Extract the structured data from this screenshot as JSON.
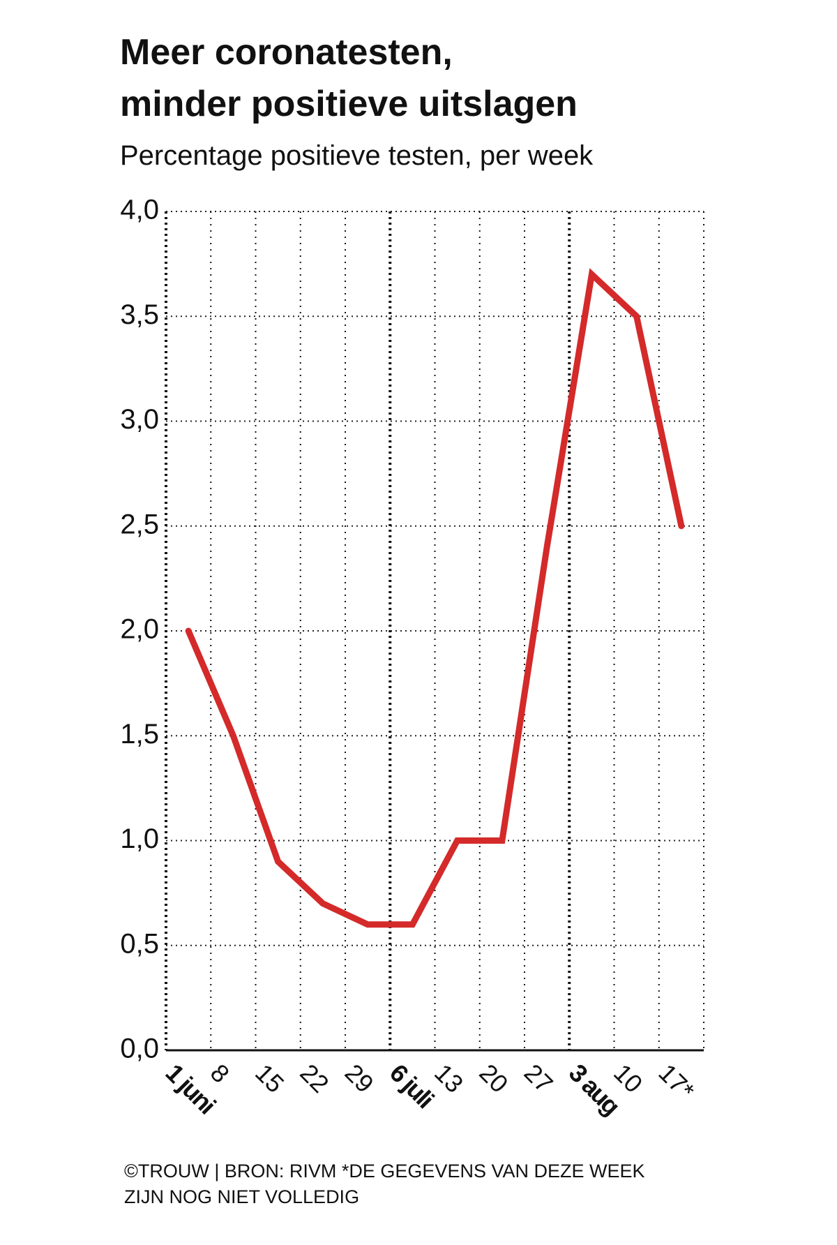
{
  "chart_data": {
    "type": "line",
    "title": [
      "Meer coronatesten,",
      "minder positieve uitslagen"
    ],
    "subtitle": "Percentage positieve testen, per week",
    "footer": [
      "©TROUW | BRON: RIVM *DE GEGEVENS VAN DEZE WEEK",
      "ZIJN NOG NIET VOLLEDIG"
    ],
    "categories": [
      "1 juni",
      "8",
      "15",
      "22",
      "29",
      "6 juli",
      "13",
      "20",
      "27",
      "3 aug",
      "10",
      "17*"
    ],
    "series": [
      {
        "name": "Percentage positieve testen",
        "color": "#d42a2a",
        "values": [
          2.0,
          1.5,
          0.9,
          0.7,
          0.6,
          0.6,
          1.0,
          1.0,
          2.4,
          3.7,
          3.5,
          2.5
        ]
      }
    ],
    "ylim": [
      0,
      4
    ],
    "yticks": [
      {
        "value": 0,
        "label": "0,0"
      },
      {
        "value": 0.5,
        "label": "0,5"
      },
      {
        "value": 1,
        "label": "1,0"
      },
      {
        "value": 1.5,
        "label": "1,5"
      },
      {
        "value": 2,
        "label": "2,0"
      },
      {
        "value": 2.5,
        "label": "2,5"
      },
      {
        "value": 3,
        "label": "3,0"
      },
      {
        "value": 3.5,
        "label": "3,5"
      },
      {
        "value": 4,
        "label": "4,0"
      }
    ],
    "grid": true
  }
}
